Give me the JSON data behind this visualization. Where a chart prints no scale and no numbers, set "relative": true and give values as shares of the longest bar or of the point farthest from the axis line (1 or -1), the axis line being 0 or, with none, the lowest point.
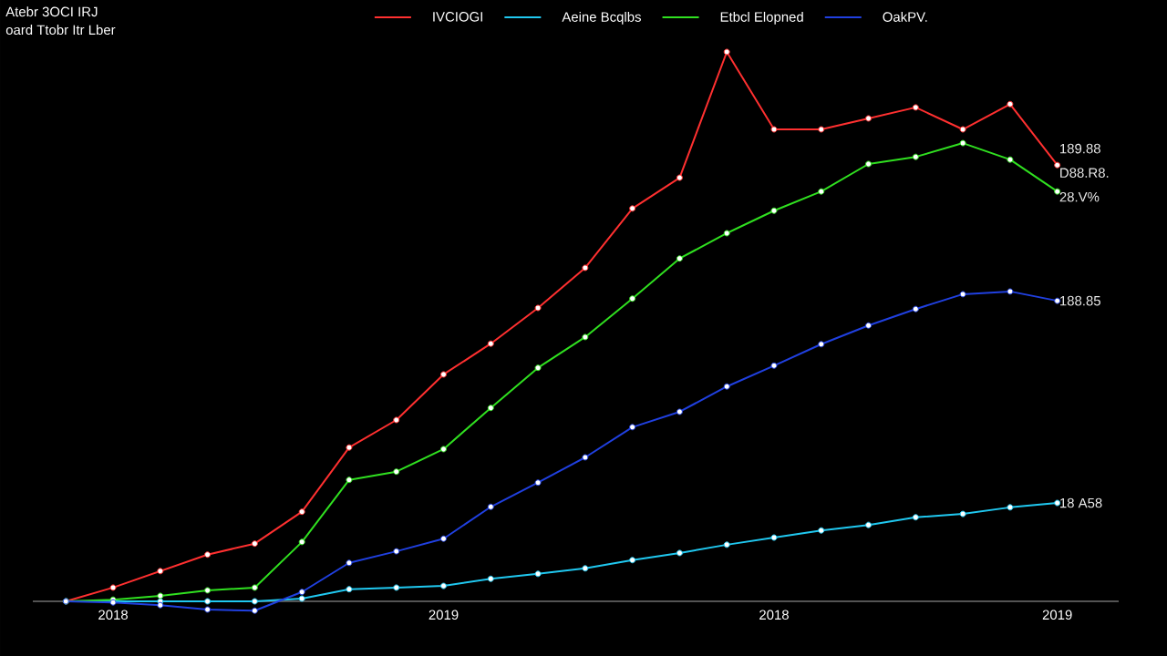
{
  "chart_data": {
    "type": "line",
    "title": "Atebr 3OCI IRJ",
    "subtitle": "oard Ttobr Itr Lber",
    "relative": true,
    "marker": "circle",
    "legend": "top",
    "categories": [
      null,
      "2018",
      null,
      null,
      null,
      null,
      null,
      null,
      "2019",
      null,
      null,
      null,
      null,
      null,
      null,
      "2018",
      null,
      null,
      null,
      null,
      null,
      "2019"
    ],
    "series": [
      {
        "name": "IVCIOGI",
        "color": "#ff3030",
        "values": [
          0,
          0.025,
          0.055,
          0.085,
          0.105,
          0.163,
          0.28,
          0.33,
          0.413,
          0.469,
          0.534,
          0.607,
          0.715,
          0.771,
          1,
          0.859,
          0.859,
          0.879,
          0.899,
          0.859,
          0.905,
          0.794
        ]
      },
      {
        "name": "Aeine Bcqlbs",
        "color": "#20c8f0",
        "values": [
          0,
          0,
          0,
          0,
          0,
          0.005,
          0.022,
          0.025,
          0.028,
          0.041,
          0.05,
          0.06,
          0.075,
          0.088,
          0.103,
          0.116,
          0.129,
          0.139,
          0.153,
          0.159,
          0.171,
          0.179
        ]
      },
      {
        "name": "Etbcl Elopned",
        "color": "#30e020",
        "values": [
          0,
          0.003,
          0.01,
          0.02,
          0.025,
          0.108,
          0.221,
          0.236,
          0.277,
          0.352,
          0.425,
          0.481,
          0.551,
          0.624,
          0.67,
          0.711,
          0.746,
          0.796,
          0.809,
          0.834,
          0.804,
          0.746
        ]
      },
      {
        "name": "OakPV.",
        "color": "#2040e0",
        "values": [
          0,
          -0.002,
          -0.007,
          -0.015,
          -0.017,
          0.017,
          0.07,
          0.091,
          0.114,
          0.172,
          0.216,
          0.262,
          0.317,
          0.345,
          0.391,
          0.429,
          0.468,
          0.502,
          0.532,
          0.559,
          0.564,
          0.547
        ]
      }
    ],
    "annotations": [
      "189.88",
      "D88.R8.",
      "28.V%",
      "188.85",
      "18 A58"
    ]
  }
}
